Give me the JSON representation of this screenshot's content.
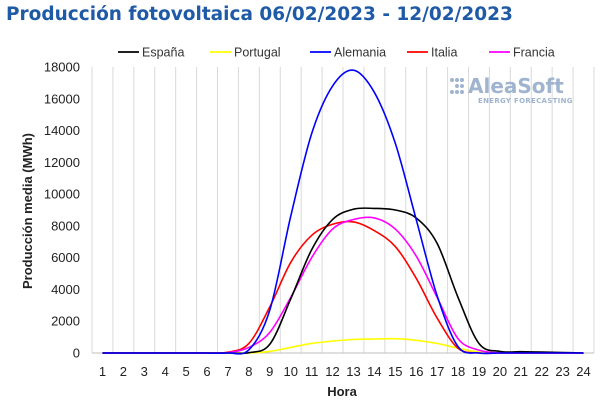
{
  "chart_data": {
    "type": "line",
    "title": "Producción fotovoltaica 06/02/2023 - 12/02/2023",
    "xlabel": "Hora",
    "ylabel": "Producción media (MWh)",
    "x": [
      1,
      2,
      3,
      4,
      5,
      6,
      7,
      8,
      9,
      10,
      11,
      12,
      13,
      14,
      15,
      16,
      17,
      18,
      19,
      20,
      21,
      22,
      23,
      24
    ],
    "ylim": [
      0,
      18000
    ],
    "yticks": [
      0,
      2000,
      4000,
      6000,
      8000,
      10000,
      12000,
      14000,
      16000,
      18000
    ],
    "ytick_labels": [
      "0",
      "2000",
      "4000",
      "6000",
      "8000",
      "10000",
      "12000",
      "14000",
      "16000",
      "18000"
    ],
    "xtick_labels": [
      "1",
      "2",
      "3",
      "4",
      "5",
      "6",
      "7",
      "8",
      "9",
      "10",
      "11",
      "12",
      "13",
      "14",
      "15",
      "16",
      "17",
      "18",
      "19",
      "20",
      "21",
      "22",
      "23",
      "24"
    ],
    "grid": "vertical",
    "legend": "top",
    "series": [
      {
        "name": "España",
        "color": "#000000",
        "values": [
          0,
          0,
          0,
          0,
          0,
          0,
          0,
          20,
          550,
          3400,
          6500,
          8400,
          9050,
          9100,
          9000,
          8500,
          6900,
          3500,
          600,
          100,
          80,
          60,
          30,
          0
        ]
      },
      {
        "name": "Portugal",
        "color": "#ffff00",
        "values": [
          0,
          0,
          0,
          0,
          0,
          0,
          0,
          0,
          100,
          350,
          600,
          750,
          850,
          880,
          900,
          800,
          600,
          300,
          50,
          0,
          0,
          0,
          0,
          0
        ]
      },
      {
        "name": "Alemania",
        "color": "#0000ff",
        "values": [
          0,
          0,
          0,
          0,
          0,
          0,
          0,
          200,
          2700,
          8600,
          13800,
          16800,
          17800,
          16400,
          13200,
          8400,
          3600,
          400,
          0,
          0,
          0,
          0,
          0,
          0
        ]
      },
      {
        "name": "Italia",
        "color": "#ff0000",
        "values": [
          0,
          0,
          0,
          0,
          0,
          0,
          50,
          600,
          2900,
          5700,
          7400,
          8100,
          8250,
          7700,
          6700,
          4700,
          2200,
          300,
          0,
          0,
          0,
          0,
          0,
          0
        ]
      },
      {
        "name": "Francia",
        "color": "#ff00ff",
        "values": [
          0,
          0,
          0,
          0,
          0,
          0,
          30,
          350,
          1300,
          3500,
          6000,
          7800,
          8400,
          8500,
          7800,
          6100,
          3500,
          900,
          180,
          0,
          0,
          0,
          0,
          0
        ]
      }
    ]
  },
  "logo": {
    "main": "AleaSoft",
    "sub": "ENERGY FORECASTING"
  }
}
